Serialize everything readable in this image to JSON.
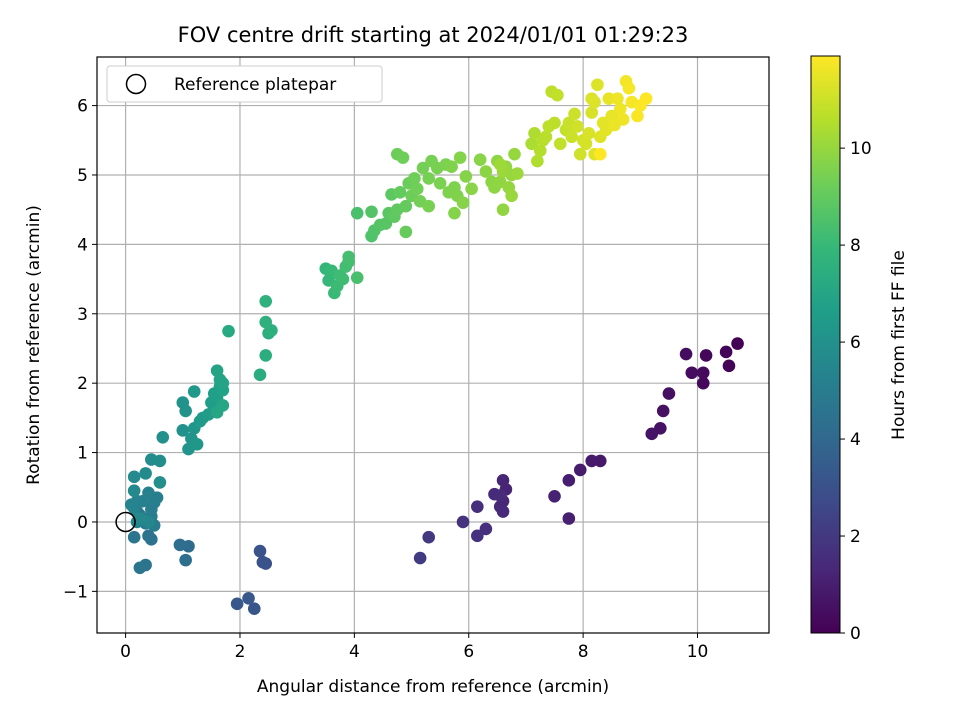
{
  "chart_data": {
    "type": "scatter",
    "title": "FOV centre drift starting at 2024/01/01 01:29:23",
    "xlabel": "Angular distance from reference (arcmin)",
    "ylabel": "Rotation from reference (arcmin)",
    "xlim": [
      -0.5,
      11.25
    ],
    "ylim": [
      -1.6,
      6.7
    ],
    "x_ticks": [
      0,
      2,
      4,
      6,
      8,
      10
    ],
    "y_ticks": [
      -1,
      0,
      1,
      2,
      3,
      4,
      5,
      6
    ],
    "grid": true,
    "legend": {
      "placement": "top-left",
      "entries": [
        "Reference platepar"
      ]
    },
    "reference_point": {
      "name": "Reference platepar",
      "x": 0,
      "y": 0
    },
    "colorbar": {
      "label": "Hours from first FF file",
      "colormap": "viridis",
      "range": [
        0,
        11.9
      ],
      "ticks": [
        0,
        2,
        4,
        6,
        8,
        10
      ]
    },
    "points": [
      [
        10.7,
        2.57,
        0.05
      ],
      [
        10.55,
        2.25,
        0.1
      ],
      [
        10.5,
        2.45,
        0.15
      ],
      [
        10.15,
        2.4,
        0.2
      ],
      [
        10.1,
        2.0,
        0.25
      ],
      [
        10.1,
        2.15,
        0.3
      ],
      [
        9.9,
        2.15,
        0.35
      ],
      [
        9.8,
        2.42,
        0.4
      ],
      [
        9.5,
        1.85,
        0.5
      ],
      [
        9.4,
        1.6,
        0.55
      ],
      [
        9.35,
        1.35,
        0.6
      ],
      [
        9.2,
        1.27,
        0.65
      ],
      [
        8.3,
        0.88,
        0.8
      ],
      [
        8.15,
        0.88,
        0.85
      ],
      [
        7.95,
        0.75,
        0.9
      ],
      [
        7.75,
        0.6,
        1.0
      ],
      [
        7.75,
        0.05,
        1.05
      ],
      [
        7.5,
        0.37,
        1.1
      ],
      [
        6.65,
        0.47,
        1.2
      ],
      [
        6.6,
        0.6,
        1.25
      ],
      [
        6.6,
        0.3,
        1.3
      ],
      [
        6.55,
        0.22,
        1.35
      ],
      [
        6.6,
        0.15,
        1.4
      ],
      [
        6.45,
        0.4,
        1.45
      ],
      [
        6.55,
        0.38,
        1.5
      ],
      [
        6.3,
        -0.1,
        1.6
      ],
      [
        6.15,
        0.22,
        1.65
      ],
      [
        6.15,
        -0.2,
        1.7
      ],
      [
        5.9,
        0.0,
        1.75
      ],
      [
        5.3,
        -0.22,
        2.0
      ],
      [
        5.15,
        -0.52,
        2.1
      ],
      [
        2.45,
        -0.6,
        3.0
      ],
      [
        2.4,
        -0.58,
        3.05
      ],
      [
        2.35,
        -0.42,
        3.1
      ],
      [
        2.25,
        -1.25,
        3.2
      ],
      [
        2.15,
        -1.1,
        3.25
      ],
      [
        1.95,
        -1.18,
        3.3
      ],
      [
        1.1,
        -0.35,
        4.2
      ],
      [
        0.95,
        -0.33,
        4.25
      ],
      [
        1.05,
        -0.55,
        4.3
      ],
      [
        0.45,
        -0.25,
        4.5
      ],
      [
        0.4,
        -0.2,
        4.55
      ],
      [
        0.35,
        -0.62,
        4.6
      ],
      [
        0.25,
        -0.66,
        4.65
      ],
      [
        0.15,
        -0.22,
        4.7
      ],
      [
        0.2,
        0.15,
        4.75
      ],
      [
        0.25,
        0.1,
        4.8
      ],
      [
        0.3,
        0.05,
        4.85
      ],
      [
        0.35,
        -0.02,
        4.9
      ],
      [
        0.45,
        0.08,
        4.95
      ],
      [
        0.5,
        -0.05,
        5.0
      ],
      [
        0.45,
        0.18,
        5.05
      ],
      [
        0.5,
        0.28,
        5.1
      ],
      [
        0.55,
        0.35,
        5.15
      ],
      [
        0.4,
        0.42,
        5.2
      ],
      [
        0.3,
        0.3,
        5.25
      ],
      [
        0.2,
        0.3,
        5.3
      ],
      [
        0.15,
        0.2,
        5.35
      ],
      [
        0.1,
        0.25,
        5.4
      ],
      [
        0.2,
        0.0,
        5.45
      ],
      [
        0.4,
        0.0,
        5.5
      ],
      [
        0.25,
        0.05,
        5.55
      ],
      [
        0.15,
        0.45,
        5.6
      ],
      [
        0.15,
        0.65,
        5.65
      ],
      [
        0.35,
        0.7,
        5.7
      ],
      [
        0.45,
        0.9,
        5.75
      ],
      [
        0.6,
        0.88,
        5.8
      ],
      [
        0.6,
        0.57,
        5.85
      ],
      [
        0.65,
        1.22,
        5.95
      ],
      [
        1.0,
        1.32,
        6.0
      ],
      [
        1.05,
        1.6,
        6.05
      ],
      [
        1.0,
        1.72,
        6.1
      ],
      [
        1.1,
        1.05,
        6.15
      ],
      [
        1.15,
        1.2,
        6.2
      ],
      [
        1.2,
        1.35,
        6.25
      ],
      [
        1.25,
        1.12,
        6.3
      ],
      [
        1.2,
        1.88,
        6.35
      ],
      [
        1.3,
        1.45,
        6.4
      ],
      [
        1.35,
        1.5,
        6.45
      ],
      [
        1.45,
        1.55,
        6.5
      ],
      [
        1.55,
        1.65,
        6.55
      ],
      [
        1.5,
        1.72,
        6.6
      ],
      [
        1.55,
        1.85,
        6.65
      ],
      [
        1.6,
        1.78,
        6.7
      ],
      [
        1.65,
        1.95,
        6.75
      ],
      [
        1.7,
        1.9,
        6.8
      ],
      [
        1.65,
        2.05,
        6.85
      ],
      [
        1.7,
        2.0,
        6.9
      ],
      [
        1.6,
        2.18,
        6.95
      ],
      [
        1.6,
        1.58,
        7.0
      ],
      [
        1.7,
        1.68,
        7.05
      ],
      [
        1.8,
        2.75,
        7.2
      ],
      [
        2.35,
        2.12,
        7.35
      ],
      [
        2.45,
        2.4,
        7.4
      ],
      [
        2.5,
        2.72,
        7.45
      ],
      [
        2.55,
        2.76,
        7.5
      ],
      [
        2.45,
        2.88,
        7.55
      ],
      [
        2.45,
        3.18,
        7.6
      ],
      [
        3.5,
        3.65,
        7.9
      ],
      [
        3.55,
        3.48,
        7.95
      ],
      [
        3.6,
        3.62,
        8.0
      ],
      [
        3.65,
        3.3,
        8.05
      ],
      [
        3.7,
        3.4,
        8.1
      ],
      [
        3.75,
        3.55,
        8.15
      ],
      [
        3.8,
        3.5,
        8.2
      ],
      [
        3.85,
        3.68,
        8.25
      ],
      [
        3.9,
        3.75,
        8.3
      ],
      [
        3.9,
        3.82,
        8.35
      ],
      [
        4.05,
        3.52,
        8.4
      ],
      [
        4.05,
        4.45,
        8.45
      ],
      [
        4.3,
        4.12,
        8.55
      ],
      [
        4.35,
        4.2,
        8.6
      ],
      [
        4.3,
        4.47,
        8.65
      ],
      [
        4.45,
        4.28,
        8.7
      ],
      [
        4.55,
        4.3,
        8.75
      ],
      [
        4.6,
        4.45,
        8.8
      ],
      [
        4.65,
        4.72,
        8.85
      ],
      [
        4.7,
        4.4,
        8.9
      ],
      [
        4.75,
        4.5,
        8.95
      ],
      [
        4.8,
        4.75,
        9.0
      ],
      [
        4.9,
        4.55,
        9.05
      ],
      [
        4.9,
        4.18,
        9.1
      ],
      [
        4.95,
        4.88,
        9.15
      ],
      [
        5.0,
        4.7,
        9.2
      ],
      [
        4.75,
        5.3,
        9.2
      ],
      [
        4.85,
        5.25,
        9.25
      ],
      [
        5.05,
        4.95,
        9.25
      ],
      [
        5.1,
        4.8,
        9.3
      ],
      [
        5.15,
        4.62,
        9.35
      ],
      [
        5.2,
        5.1,
        9.35
      ],
      [
        5.3,
        4.95,
        9.4
      ],
      [
        5.35,
        5.2,
        9.4
      ],
      [
        5.3,
        4.55,
        9.45
      ],
      [
        5.45,
        5.1,
        9.45
      ],
      [
        5.5,
        4.88,
        9.5
      ],
      [
        5.6,
        5.15,
        9.5
      ],
      [
        5.65,
        4.75,
        9.55
      ],
      [
        5.75,
        4.82,
        9.55
      ],
      [
        5.7,
        5.12,
        9.6
      ],
      [
        5.8,
        4.7,
        9.6
      ],
      [
        5.75,
        4.45,
        9.65
      ],
      [
        5.85,
        5.25,
        9.65
      ],
      [
        5.9,
        4.6,
        9.7
      ],
      [
        5.95,
        4.98,
        9.7
      ],
      [
        6.05,
        4.8,
        9.75
      ],
      [
        6.2,
        5.22,
        9.75
      ],
      [
        6.3,
        5.05,
        9.8
      ],
      [
        6.4,
        4.9,
        9.8
      ],
      [
        6.45,
        4.82,
        9.85
      ],
      [
        6.5,
        5.2,
        9.85
      ],
      [
        6.55,
        4.9,
        9.9
      ],
      [
        6.6,
        4.5,
        9.9
      ],
      [
        6.65,
        5.12,
        9.95
      ],
      [
        6.7,
        4.82,
        9.95
      ],
      [
        6.75,
        5.0,
        10.0
      ],
      [
        6.8,
        5.3,
        10.0
      ],
      [
        6.75,
        4.7,
        10.05
      ],
      [
        6.85,
        5.02,
        10.1
      ],
      [
        6.6,
        5.05,
        10.1
      ],
      [
        6.55,
        5.15,
        10.15
      ],
      [
        7.1,
        5.45,
        10.4
      ],
      [
        7.15,
        5.6,
        10.45
      ],
      [
        7.2,
        5.2,
        10.5
      ],
      [
        7.25,
        5.35,
        10.55
      ],
      [
        7.3,
        5.5,
        10.6
      ],
      [
        7.35,
        5.55,
        10.65
      ],
      [
        7.4,
        5.7,
        10.7
      ],
      [
        7.5,
        5.75,
        10.75
      ],
      [
        7.45,
        6.2,
        10.75
      ],
      [
        7.55,
        6.15,
        10.8
      ],
      [
        7.6,
        5.45,
        10.8
      ],
      [
        7.7,
        5.65,
        10.85
      ],
      [
        7.75,
        5.75,
        10.9
      ],
      [
        7.8,
        5.55,
        10.95
      ],
      [
        7.85,
        5.88,
        11.0
      ],
      [
        7.9,
        5.7,
        11.05
      ],
      [
        7.95,
        5.3,
        11.05
      ],
      [
        8.0,
        5.5,
        11.1
      ],
      [
        8.05,
        5.45,
        11.15
      ],
      [
        8.1,
        5.6,
        11.2
      ],
      [
        8.15,
        5.9,
        11.2
      ],
      [
        8.15,
        6.1,
        11.25
      ],
      [
        8.2,
        6.05,
        11.3
      ],
      [
        8.25,
        6.3,
        11.3
      ],
      [
        8.2,
        5.3,
        11.35
      ],
      [
        8.3,
        5.55,
        11.35
      ],
      [
        8.35,
        5.75,
        11.4
      ],
      [
        8.4,
        5.65,
        11.45
      ],
      [
        8.45,
        6.1,
        11.5
      ],
      [
        8.5,
        5.85,
        11.5
      ],
      [
        8.55,
        5.72,
        11.55
      ],
      [
        8.6,
        6.1,
        11.6
      ],
      [
        8.65,
        5.95,
        11.6
      ],
      [
        8.7,
        5.8,
        11.65
      ],
      [
        8.75,
        6.35,
        11.7
      ],
      [
        8.8,
        6.25,
        11.75
      ],
      [
        8.85,
        6.05,
        11.75
      ],
      [
        8.95,
        5.85,
        11.8
      ],
      [
        9.0,
        6.0,
        11.85
      ],
      [
        9.1,
        6.1,
        11.9
      ],
      [
        8.3,
        5.3,
        11.9
      ]
    ]
  }
}
